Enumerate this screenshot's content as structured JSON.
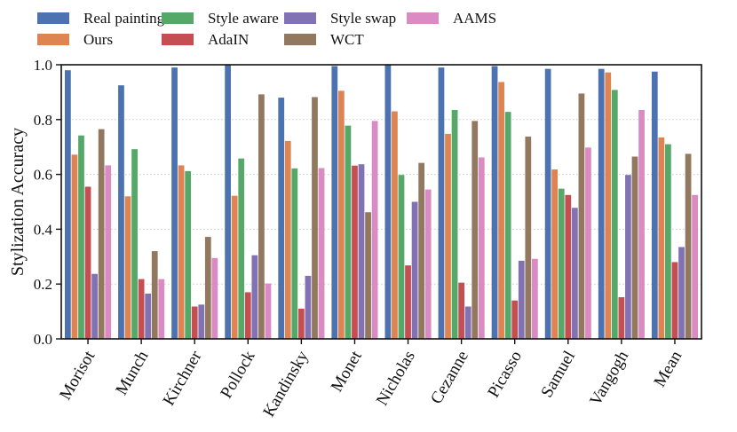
{
  "chart_data": {
    "type": "bar",
    "title": "",
    "xlabel": "",
    "ylabel": "Stylization Accuracy",
    "ylim": [
      0,
      1.0
    ],
    "yticks": [
      0.0,
      0.2,
      0.4,
      0.6,
      0.8,
      1.0
    ],
    "ytick_labels": [
      "0.0",
      "0.2",
      "0.4",
      "0.6",
      "0.8",
      "1.0"
    ],
    "grid": "horizontal dotted",
    "legend_position": "top",
    "categories": [
      "Morisot",
      "Munch",
      "Kirchner",
      "Pollock",
      "Kandinsky",
      "Monet",
      "Nicholas",
      "Cezanne",
      "Picasso",
      "Samuel",
      "Vangogh",
      "Mean"
    ],
    "series": [
      {
        "name": "Real painting",
        "color": "#4c72b0",
        "values": [
          0.98,
          0.925,
          0.99,
          1.0,
          0.88,
          0.995,
          1.0,
          0.99,
          0.995,
          0.985,
          0.985,
          0.975
        ]
      },
      {
        "name": "Ours",
        "color": "#dd8452",
        "values": [
          0.672,
          0.52,
          0.633,
          0.522,
          0.722,
          0.905,
          0.83,
          0.748,
          0.937,
          0.618,
          0.972,
          0.735
        ]
      },
      {
        "name": "Style aware",
        "color": "#55a868",
        "values": [
          0.742,
          0.692,
          0.612,
          0.658,
          0.622,
          0.778,
          0.598,
          0.835,
          0.828,
          0.548,
          0.908,
          0.71
        ]
      },
      {
        "name": "AdaIN",
        "color": "#c44e52",
        "values": [
          0.555,
          0.218,
          0.118,
          0.17,
          0.11,
          0.632,
          0.268,
          0.205,
          0.14,
          0.525,
          0.152,
          0.28
        ]
      },
      {
        "name": "Style swap",
        "color": "#8172b3",
        "values": [
          0.237,
          0.165,
          0.125,
          0.305,
          0.23,
          0.637,
          0.5,
          0.118,
          0.285,
          0.478,
          0.598,
          0.335
        ]
      },
      {
        "name": "WCT",
        "color": "#937860",
        "values": [
          0.765,
          0.32,
          0.372,
          0.892,
          0.882,
          0.462,
          0.642,
          0.795,
          0.738,
          0.895,
          0.665,
          0.675
        ]
      },
      {
        "name": "AAMS",
        "color": "#da8bc3",
        "values": [
          0.633,
          0.218,
          0.295,
          0.202,
          0.623,
          0.795,
          0.545,
          0.662,
          0.292,
          0.698,
          0.835,
          0.525
        ]
      }
    ]
  }
}
